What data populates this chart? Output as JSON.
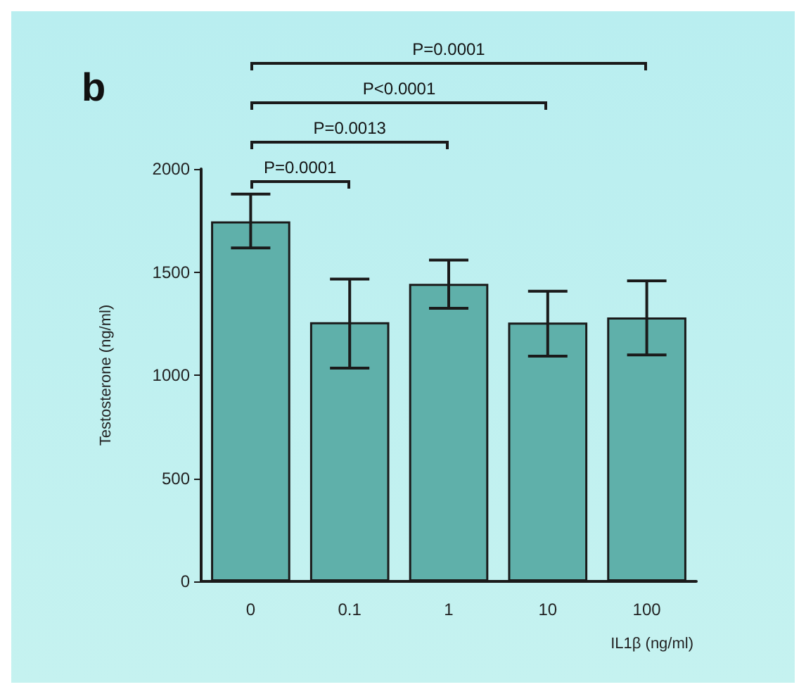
{
  "chart_data": {
    "type": "bar",
    "title": "b",
    "xlabel": "IL1β (ng/ml)",
    "ylabel": "Testosterone (ng/ml)",
    "categories": [
      "0",
      "0.1",
      "1",
      "10",
      "100"
    ],
    "values": [
      1746,
      1257,
      1443,
      1255,
      1280
    ],
    "errors": [
      [
        1617,
        1878
      ],
      [
        1034,
        1466
      ],
      [
        1324,
        1558
      ],
      [
        1092,
        1407
      ],
      [
        1098,
        1457
      ]
    ],
    "color": "#5fb0aa",
    "ylim": [
      0,
      2000
    ],
    "yticks": [
      0,
      500,
      1000,
      1500,
      2000
    ],
    "grid": false,
    "annotations": [
      "P=0.0001",
      "P=0.0013",
      "P<0.0001",
      "P=0.0001"
    ]
  }
}
